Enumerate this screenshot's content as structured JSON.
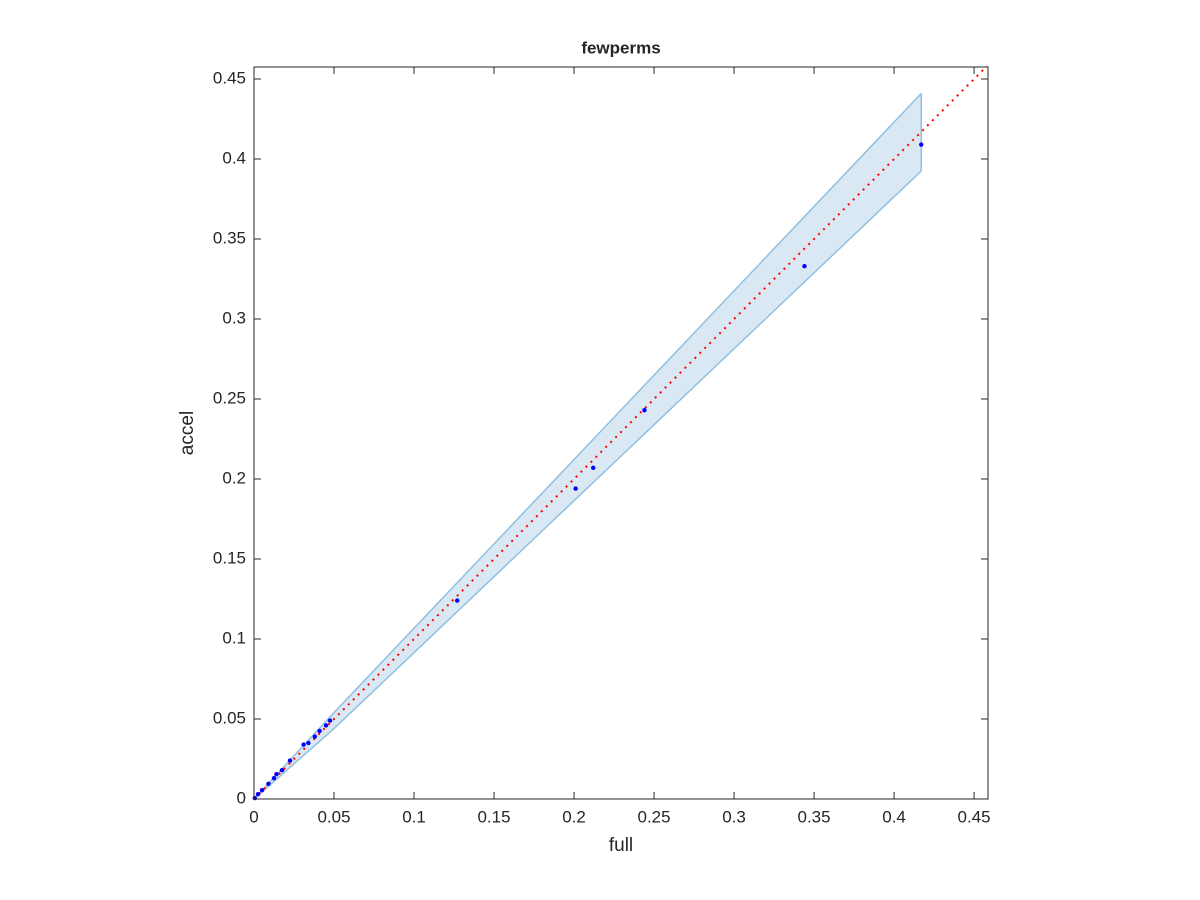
{
  "chart_data": {
    "type": "scatter",
    "title": "fewperms",
    "x_label": "full",
    "y_label": "accel",
    "x": [
      0.417,
      0.344,
      0.244,
      0.212,
      0.201,
      0.127,
      0.0475,
      0.045,
      0.041,
      0.038,
      0.034,
      0.031,
      0.0225,
      0.0175,
      0.014,
      0.0125,
      0.009,
      0.005,
      0.0025,
      0.0005
    ],
    "y": [
      0.409,
      0.333,
      0.243,
      0.207,
      0.194,
      0.124,
      0.049,
      0.046,
      0.0425,
      0.039,
      0.035,
      0.034,
      0.024,
      0.018,
      0.0155,
      0.013,
      0.0095,
      0.0055,
      0.003,
      0.0006
    ],
    "color": "#0000ff",
    "band": {
      "x": [
        0,
        0.05,
        0.417
      ],
      "upper": [
        0,
        0.054,
        0.441
      ],
      "lower": [
        0,
        0.044,
        0.3925
      ],
      "color": "#dae8f4",
      "edge_color": "#8fc0e0"
    },
    "reference_line": {
      "x": [
        0,
        0.458
      ],
      "y": [
        0,
        0.458
      ],
      "color": "#ff0000"
    },
    "xlim": [
      0,
      0.4587
    ],
    "ylim": [
      0,
      0.4575
    ],
    "xticks": [
      0,
      0.05,
      0.1,
      0.15,
      0.2,
      0.25,
      0.3,
      0.35,
      0.4,
      0.45
    ],
    "yticks": [
      0,
      0.05,
      0.1,
      0.15,
      0.2,
      0.25,
      0.3,
      0.35,
      0.4,
      0.45
    ]
  }
}
